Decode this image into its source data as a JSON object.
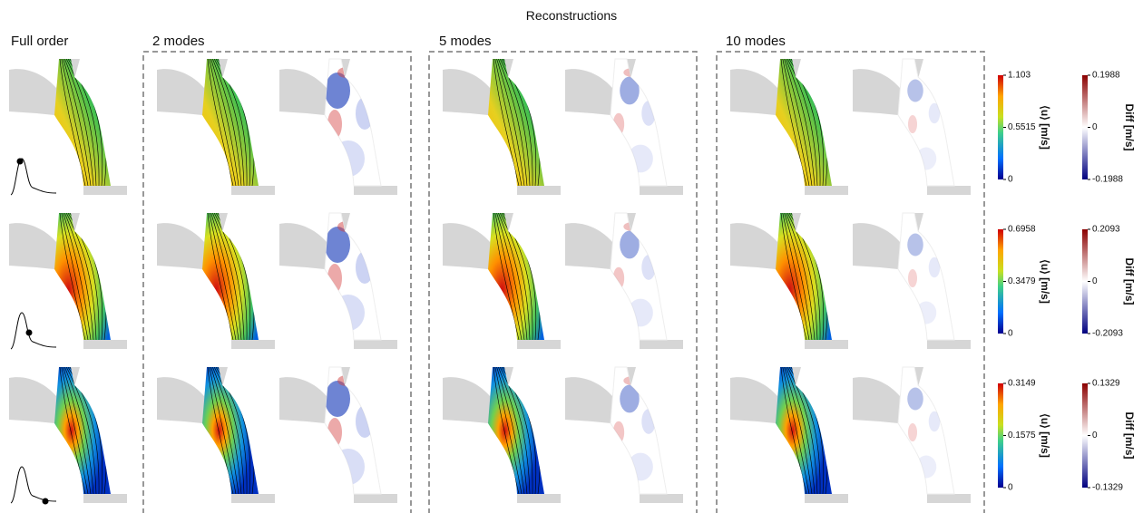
{
  "title": "Reconstructions",
  "columns": [
    "Full order",
    "2 modes",
    "5 modes",
    "10 modes"
  ],
  "rows": [
    {
      "velocity_colorbar": {
        "label": "⟨u⟩ [m/s]",
        "lim": [
          0,
          1.103
        ],
        "ticks": [
          0,
          0.5515,
          1.103
        ]
      },
      "diff_colorbar": {
        "label": "Diff [m/s]",
        "lim": [
          -0.1988,
          0.1988
        ],
        "ticks": [
          -0.1988,
          0,
          0.1988
        ]
      }
    },
    {
      "velocity_colorbar": {
        "label": "⟨u⟩ [m/s]",
        "lim": [
          0,
          0.6958
        ],
        "ticks": [
          0,
          0.3479,
          0.6958
        ]
      },
      "diff_colorbar": {
        "label": "Diff [m/s]",
        "lim": [
          -0.2093,
          0.2093
        ],
        "ticks": [
          -0.2093,
          0,
          0.2093
        ]
      }
    },
    {
      "velocity_colorbar": {
        "label": "⟨u⟩ [m/s]",
        "lim": [
          0,
          0.3149
        ],
        "ticks": [
          0,
          0.1575,
          0.3149
        ]
      },
      "diff_colorbar": {
        "label": "Diff [m/s]",
        "lim": [
          -0.1329,
          0.1329
        ],
        "ticks": [
          -0.1329,
          0,
          0.1329
        ]
      }
    }
  ]
}
